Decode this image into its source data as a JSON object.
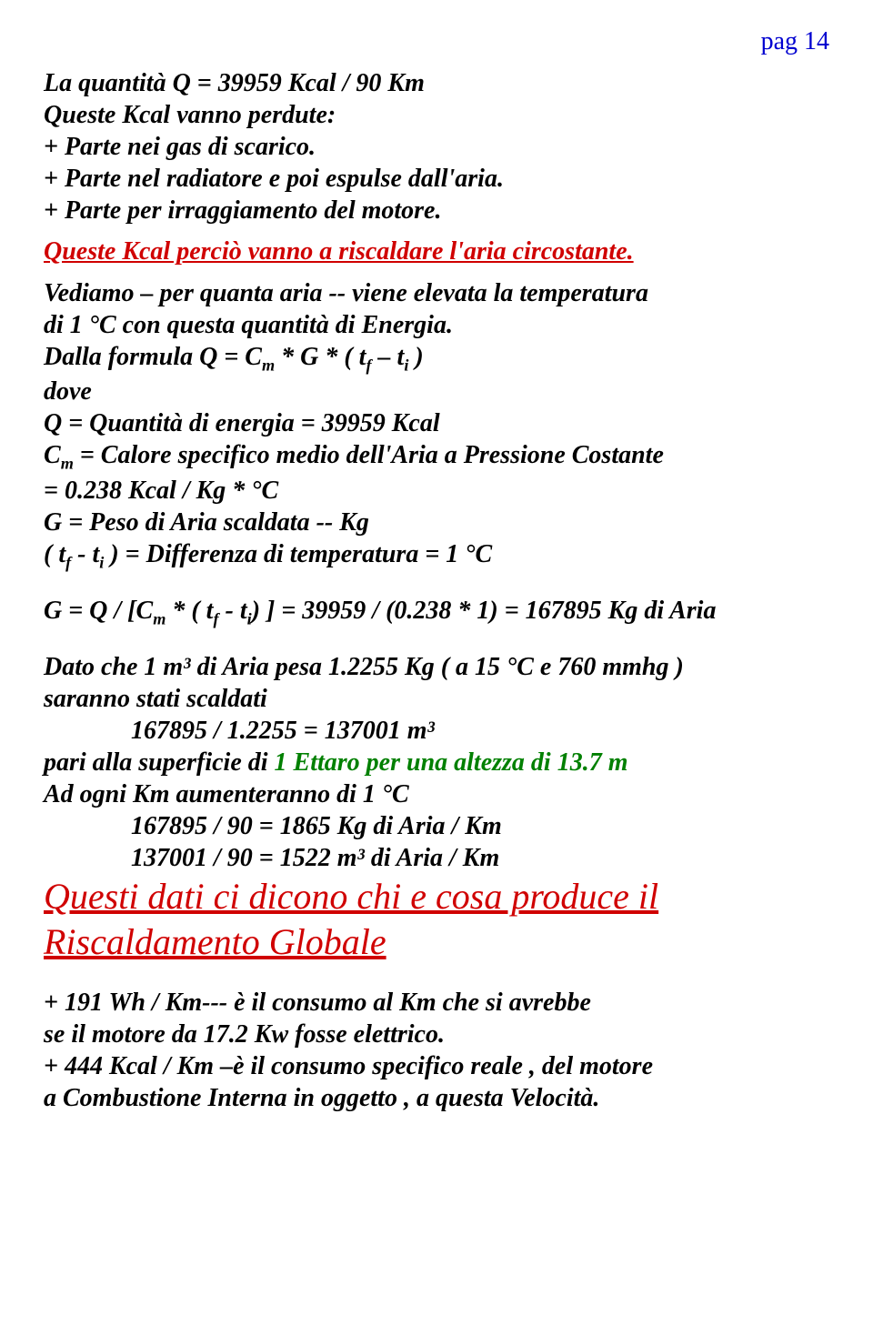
{
  "page_number": "pag 14",
  "colors": {
    "page_num": "#0000d0",
    "text": "#000000",
    "red": "#d00000",
    "green": "#008000",
    "bg": "#ffffff"
  },
  "p": {
    "l1": "La quantità  Q = 39959  Kcal / 90 Km",
    "l2": "Queste Kcal vanno perdute:",
    "l3": "+ Parte nei gas di scarico.",
    "l4": "+ Parte nel radiatore e poi espulse dall'aria.",
    "l5": "+ Parte per irraggiamento del motore.",
    "red1": " Queste Kcal perciò vanno a riscaldare l'aria circostante.",
    "l6": "Vediamo – per quanta aria  -- viene elevata la temperatura",
    "l7": " di   1 °C  con questa quantità di Energia.",
    "l8a": " Dalla formula  Q = C",
    "l8b": " * G * ( t",
    "l8c": " – t",
    "l8d": " )",
    "l9": " dove",
    "l10": " Q = Quantità di energia = 39959 Kcal",
    "l11a": " C",
    "l11b": " = Calore specifico medio dell'Aria a Pressione Costante",
    "l12": "      =  0.238 Kcal / Kg * °C",
    "l13": " G = Peso di Aria scaldata -- Kg",
    "l14a": " ( t",
    "l14b": " - t",
    "l14c": " ) = Differenza di temperatura = 1 °C",
    "l15a": "G = Q / [C",
    "l15b": " * ( t",
    "l15c": " - t",
    "l15d": ") ] = 39959 / (0.238 * 1) = 167895 Kg di Aria",
    "l16": "Dato che 1 m³ di Aria pesa 1.2255 Kg ( a 15 °C e 760 mmhg )",
    "l17": "saranno stati scaldati",
    "l18": "167895 /  1.2255 =   137001  m³",
    "l19a": "pari alla superficie di  ",
    "l19b": "1 Ettaro per una altezza di 13.7 m",
    "l20": "Ad ogni Km aumenteranno di 1 °C",
    "l21": "167895 / 90 = 1865 Kg di Aria / Km",
    "l22": "137001 / 90 = 1522 m³ di Aria / Km",
    "big1": " Questi dati ci dicono chi e cosa produce il",
    "big2": "  Riscaldamento Globale",
    "l23": "+  191 Wh / Km--- è il consumo  al Km che si avrebbe",
    "l24": "    se il  motore  da 17.2 Kw fosse elettrico.",
    "l25": "+  444 Kcal / Km –è il consumo specifico reale , del motore",
    "l26": "    a Combustione Interna in oggetto , a questa Velocità.",
    "sub_m": "m",
    "sub_f": "f",
    "sub_i": "i"
  }
}
